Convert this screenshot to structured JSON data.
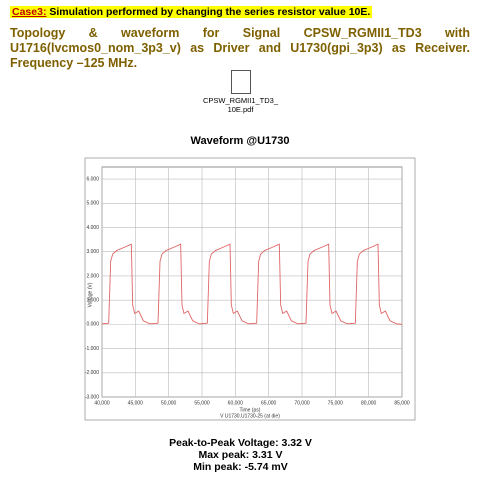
{
  "header": {
    "case_label": "Case3:",
    "case_text": " Simulation performed by changing the series resistor value 10E."
  },
  "paragraph": "Topology & waveform for Signal CPSW_RGMII1_TD3 with U1716(lvcmos0_nom_3p3_v) as Driver and U1730(gpi_3p3) as Receiver. Frequency –125 MHz.",
  "file_icon": {
    "lines": [
      "CPSW_RGMII1_TD3_",
      "10E.pdf"
    ]
  },
  "chart_data": {
    "type": "line",
    "title": "Waveform @U1730",
    "x_label": "Time (ps)",
    "y_label": "Voltage (V)",
    "xlim": [
      40000,
      85000
    ],
    "ylim": [
      -3,
      6.5
    ],
    "xticks": [
      {
        "value": 40000,
        "label": "40,000"
      },
      {
        "value": 45000,
        "label": "45,000"
      },
      {
        "value": 50000,
        "label": "50,000"
      },
      {
        "value": 55000,
        "label": "55,000"
      },
      {
        "value": 60000,
        "label": "60,000"
      },
      {
        "value": 65000,
        "label": "65,000"
      },
      {
        "value": 70000,
        "label": "70,000"
      },
      {
        "value": 75000,
        "label": "75,000"
      },
      {
        "value": 80000,
        "label": "80,000"
      },
      {
        "value": 85000,
        "label": "85,000"
      }
    ],
    "yticks": [
      {
        "value": -3,
        "label": "-3.000"
      },
      {
        "value": -2,
        "label": "-2.000"
      },
      {
        "value": -1,
        "label": "-1.000"
      },
      {
        "value": 0,
        "label": "0.000"
      },
      {
        "value": 1,
        "label": "1.000"
      },
      {
        "value": 2,
        "label": "2.000"
      },
      {
        "value": 3,
        "label": "3.000"
      },
      {
        "value": 4,
        "label": "4.000"
      },
      {
        "value": 5,
        "label": "5.000"
      },
      {
        "value": 6,
        "label": "6.000"
      }
    ],
    "grid": true,
    "series": [
      {
        "name": "V U1730.U1730-25 (at die)",
        "color": "#e06666",
        "x": [
          40000,
          41000,
          41300,
          41600,
          42200,
          43500,
          44400,
          44600,
          44900,
          45500,
          46200,
          47200,
          48400,
          48700,
          49000,
          49600,
          50900,
          51800,
          52000,
          52300,
          52900,
          53600,
          54600,
          55800,
          56100,
          56400,
          57000,
          58300,
          59200,
          59400,
          59700,
          60300,
          61000,
          62000,
          63200,
          63500,
          63800,
          64400,
          65700,
          66600,
          66800,
          67100,
          67700,
          68400,
          69400,
          70600,
          70900,
          71200,
          71800,
          73100,
          74000,
          74200,
          74500,
          75100,
          75800,
          76800,
          78000,
          78300,
          78600,
          79200,
          80500,
          81400,
          81600,
          81900,
          82500,
          83200,
          84200,
          85000
        ],
        "values": [
          0.02,
          0.05,
          2.6,
          2.9,
          3.05,
          3.2,
          3.31,
          0.8,
          0.45,
          0.55,
          0.15,
          0.02,
          0.05,
          2.6,
          2.9,
          3.05,
          3.2,
          3.31,
          0.8,
          0.45,
          0.55,
          0.15,
          0.02,
          0.05,
          2.6,
          2.9,
          3.05,
          3.2,
          3.31,
          0.8,
          0.45,
          0.55,
          0.15,
          0.02,
          0.05,
          2.6,
          2.9,
          3.05,
          3.2,
          3.31,
          0.8,
          0.45,
          0.55,
          0.15,
          0.02,
          0.05,
          2.6,
          2.9,
          3.05,
          3.2,
          3.31,
          0.8,
          0.45,
          0.55,
          0.15,
          0.02,
          0.05,
          2.6,
          2.9,
          3.05,
          3.2,
          3.31,
          0.8,
          0.45,
          0.55,
          0.15,
          0.02,
          0.0
        ]
      }
    ]
  },
  "summary": [
    "Peak-to-Peak Voltage: 3.32 V",
    "Max peak: 3.31 V",
    "Min peak: -5.74 mV"
  ]
}
